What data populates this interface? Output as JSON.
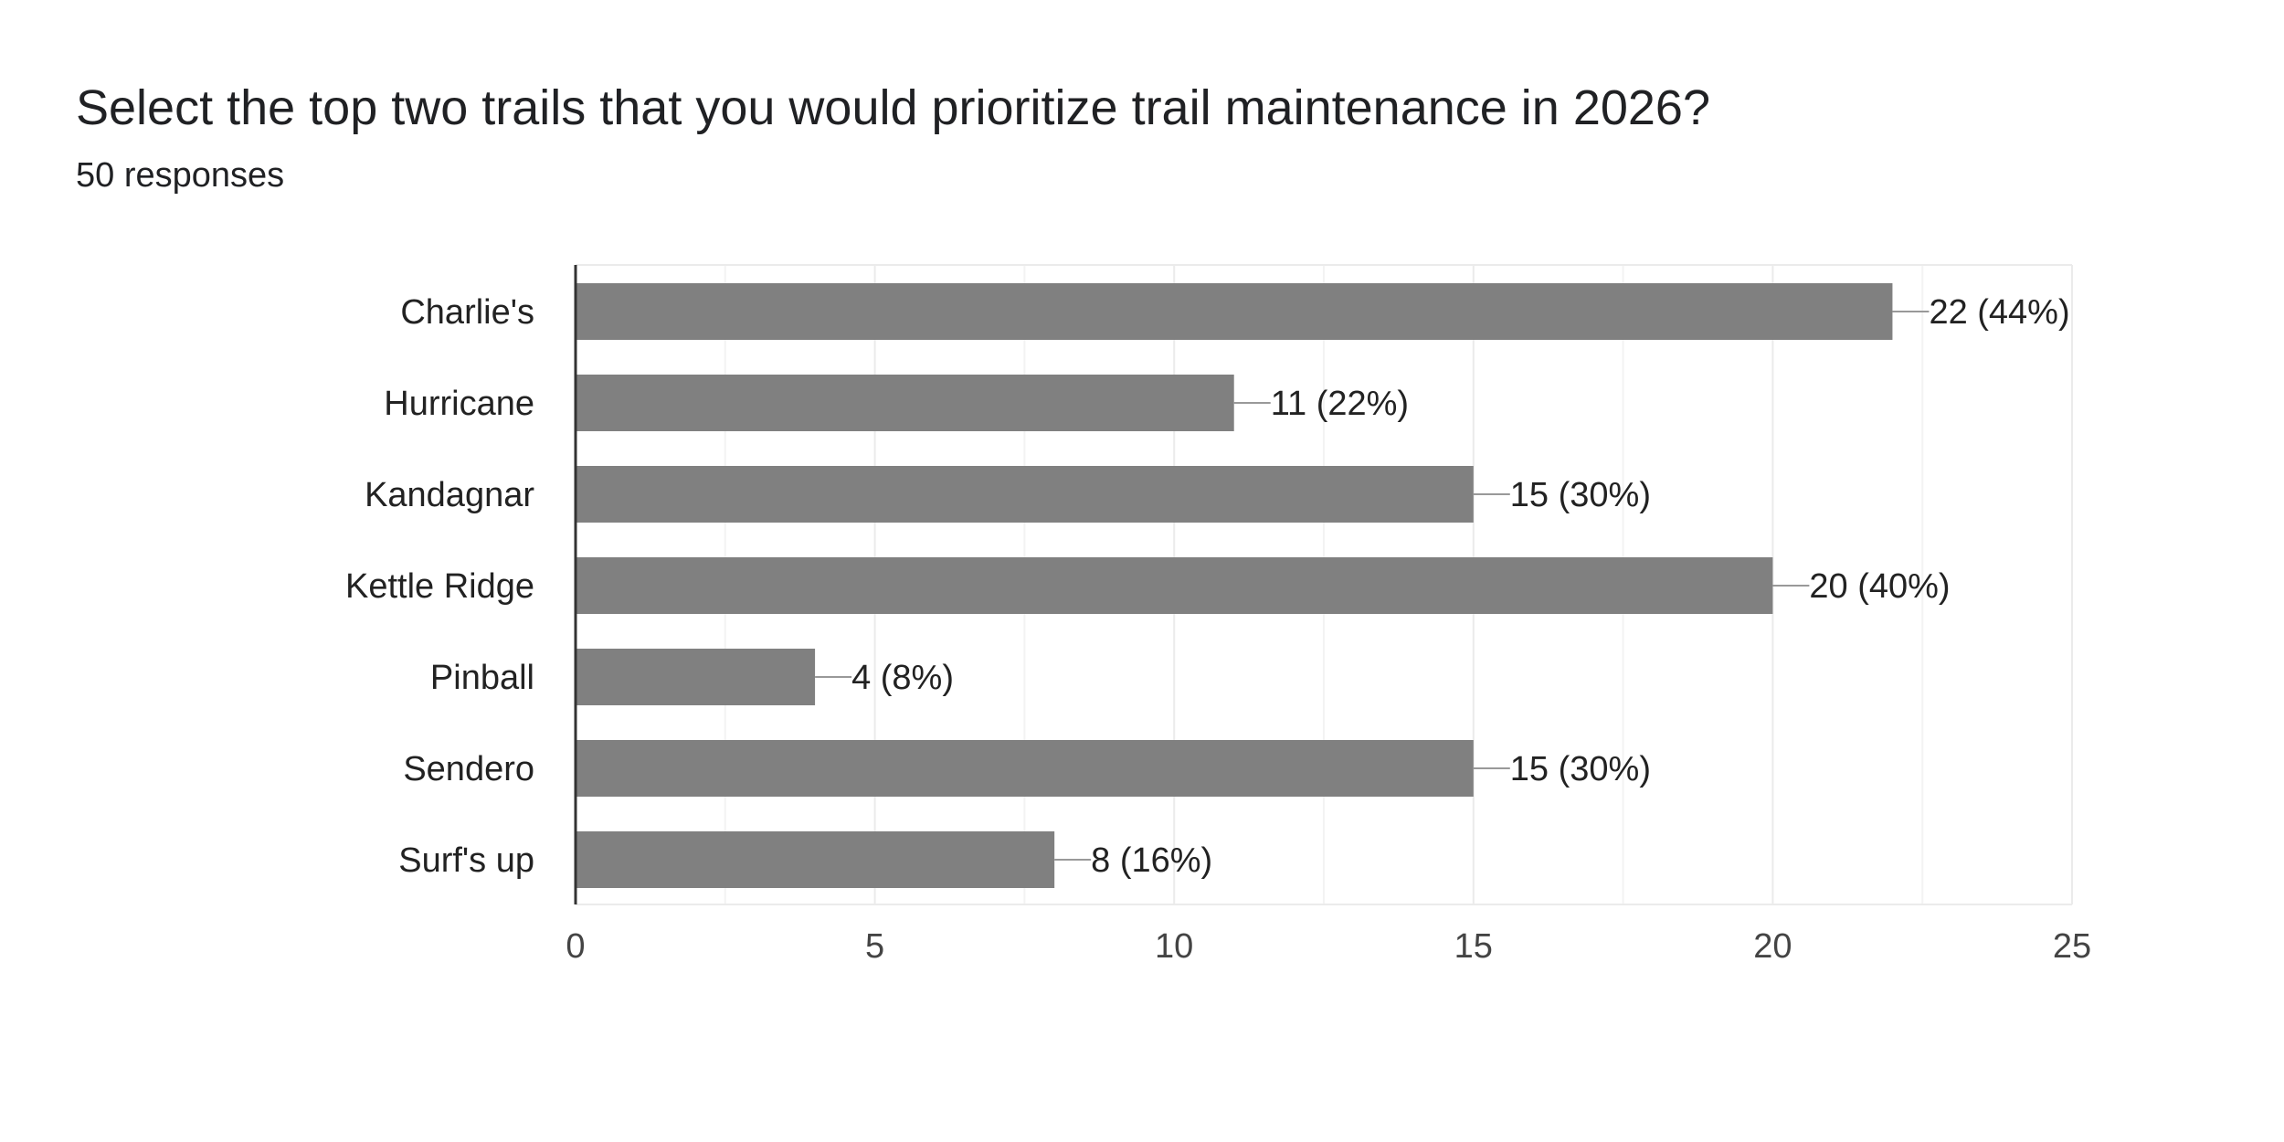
{
  "question": {
    "title": "Select the top two trails that you would prioritize trail maintenance in 2026?",
    "responses": "50 responses"
  },
  "chart_data": {
    "type": "bar",
    "orientation": "horizontal",
    "title": "Select the top two trails that you would prioritize trail maintenance in 2026?",
    "xlabel": "",
    "ylabel": "",
    "categories": [
      "Charlie's",
      "Hurricane",
      "Kandagnar",
      "Kettle Ridge",
      "Pinball",
      "Sendero",
      "Surf's up"
    ],
    "values": [
      22,
      11,
      15,
      20,
      4,
      15,
      8
    ],
    "data_labels": [
      "22 (44%)",
      "11 (22%)",
      "15 (30%)",
      "20 (40%)",
      "4 (8%)",
      "15 (30%)",
      "8 (16%)"
    ],
    "xlim": [
      0,
      25
    ],
    "ticks": [
      0,
      5,
      10,
      15,
      20,
      25
    ],
    "tick_labels": [
      "0",
      "5",
      "10",
      "15",
      "20",
      "25"
    ],
    "minor_gridlines": true,
    "bar_color": "#808080",
    "grid_color": "#ebebeb",
    "axis_color": "#333333",
    "leader_color": "#999999"
  }
}
